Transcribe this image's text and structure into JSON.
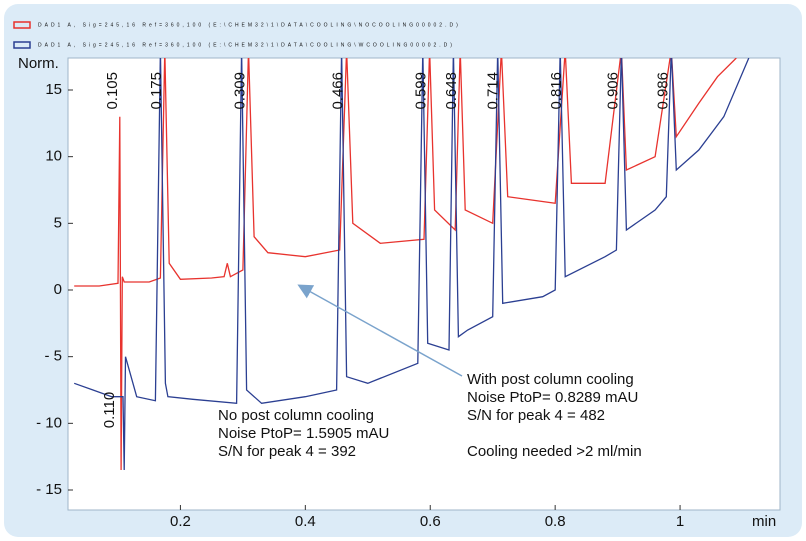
{
  "chart_data": {
    "type": "line",
    "y_label": "Norm.",
    "x_label": "min",
    "xlim": [
      0.02,
      1.16
    ],
    "ylim": [
      -16.5,
      17.4
    ],
    "xticks": [
      0.2,
      0.4,
      0.6,
      0.8,
      1
    ],
    "yticks": [
      15,
      10,
      5,
      0,
      {
        "value": -5,
        "label": "- 5"
      },
      {
        "value": -10,
        "label": "- 10"
      },
      {
        "value": -15,
        "label": "- 15"
      }
    ],
    "series": [
      {
        "name": "DAD1 A, Sig=245,16 Ref=360,100 (E:\\CHEM32\\1\\DATA\\COOLING\\NOCOOLING00002.D)",
        "color": "#e8332e",
        "x": [
          0.03,
          0.07,
          0.1,
          0.103,
          0.105,
          0.107,
          0.11,
          0.15,
          0.168,
          0.175,
          0.182,
          0.2,
          0.25,
          0.27,
          0.275,
          0.28,
          0.3,
          0.309,
          0.318,
          0.34,
          0.4,
          0.455,
          0.466,
          0.476,
          0.52,
          0.59,
          0.599,
          0.607,
          0.64,
          0.648,
          0.656,
          0.7,
          0.714,
          0.724,
          0.8,
          0.816,
          0.826,
          0.88,
          0.906,
          0.914,
          0.96,
          0.986,
          0.994,
          1.03,
          1.06,
          1.09
        ],
        "values": [
          0.3,
          0.3,
          0.5,
          13,
          -13.5,
          1,
          0.6,
          0.6,
          0.9,
          18,
          2,
          0.8,
          0.9,
          1,
          2,
          1,
          1.5,
          18,
          4,
          2.8,
          2.5,
          3,
          18,
          5,
          3.5,
          3.8,
          18,
          6,
          4.5,
          18,
          6,
          5,
          18,
          7,
          6.5,
          18,
          8,
          8,
          18,
          9,
          10,
          18,
          11.5,
          14,
          16,
          17.4
        ]
      },
      {
        "name": "DAD1 A, Sig=245,16 Ref=360,100 (E:\\CHEM32\\1\\DATA\\COOLING\\WCOOLING00002.D)",
        "color": "#2b3f92",
        "x": [
          0.03,
          0.06,
          0.09,
          0.108,
          0.11,
          0.112,
          0.13,
          0.16,
          0.168,
          0.176,
          0.18,
          0.22,
          0.29,
          0.298,
          0.306,
          0.33,
          0.4,
          0.45,
          0.458,
          0.466,
          0.5,
          0.58,
          0.588,
          0.596,
          0.63,
          0.637,
          0.645,
          0.66,
          0.7,
          0.708,
          0.716,
          0.78,
          0.8,
          0.808,
          0.816,
          0.88,
          0.898,
          0.906,
          0.914,
          0.96,
          0.978,
          0.986,
          0.994,
          1.03,
          1.07,
          1.11
        ],
        "values": [
          -7,
          -7.5,
          -8,
          -8,
          -13.5,
          -5,
          -8,
          -8.3,
          18,
          -7,
          -8,
          -8.2,
          -8.5,
          18,
          -7.5,
          -8.5,
          -8,
          -7.5,
          18,
          -6.5,
          -7,
          -5.5,
          18,
          -4,
          -4.5,
          18,
          -3.5,
          -3,
          -2,
          18,
          -1,
          -0.5,
          0,
          18,
          1,
          2.5,
          3,
          18,
          4.5,
          6,
          7,
          18,
          9,
          10.5,
          13,
          17.4
        ]
      }
    ],
    "peak_labels": [
      "0.105",
      "0.175",
      "0.309",
      "0.466",
      "0.599",
      "0.648",
      "0.714",
      "0.816",
      "0.906",
      "0.986"
    ],
    "lower_peak_label": "0.110",
    "annotations": [
      {
        "lines": [
          "No post column cooling",
          "Noise PtoP= 1.5905 mAU",
          "S/N for peak 4 = 392"
        ]
      },
      {
        "lines": [
          "With post column cooling",
          "Noise PtoP= 0.8289 mAU",
          "S/N for peak 4 = 482",
          "",
          "Cooling needed >2 ml/min"
        ]
      }
    ]
  }
}
